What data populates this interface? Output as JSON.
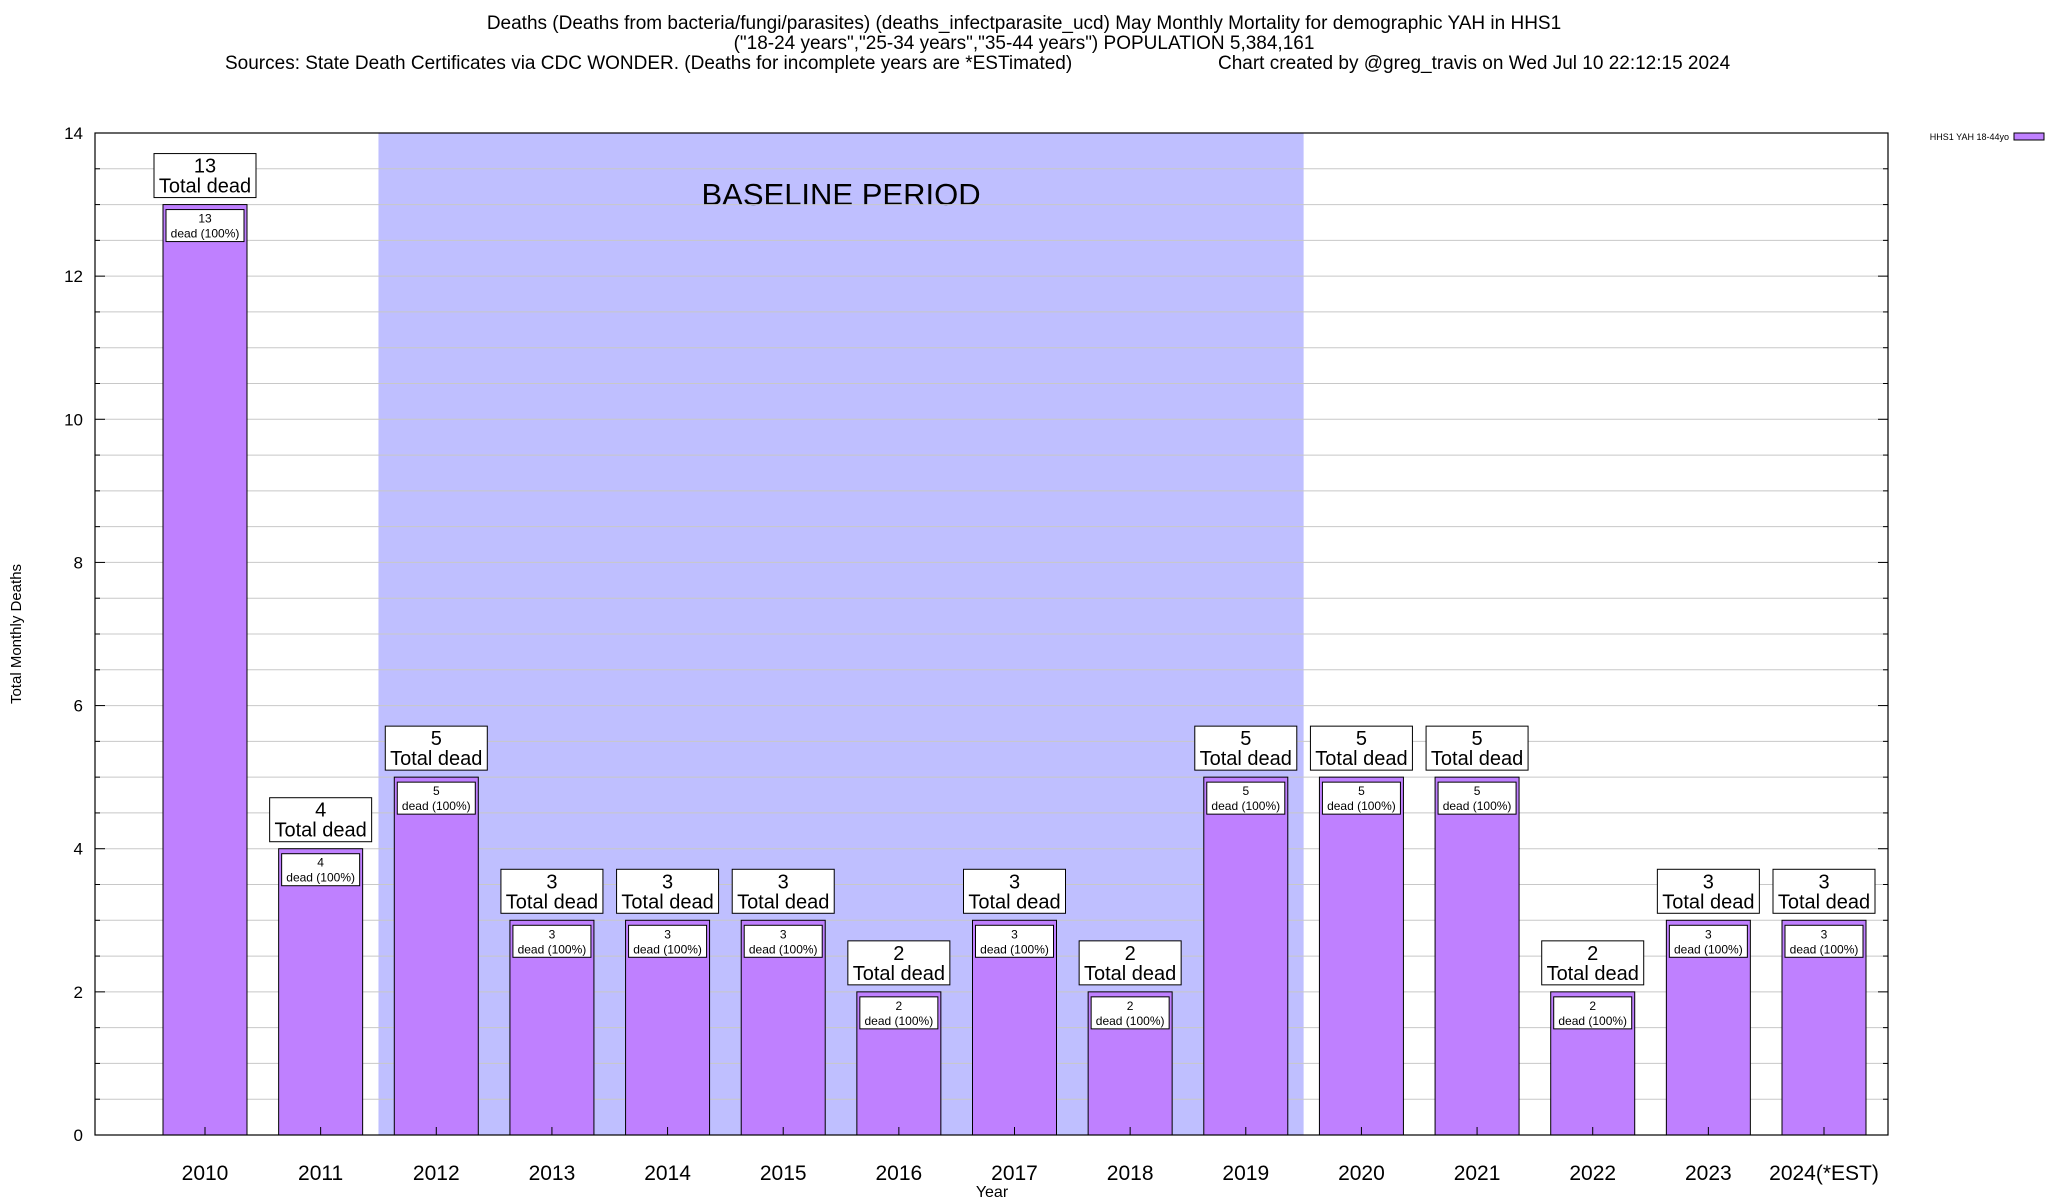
{
  "header": {
    "title_line1": "Deaths (Deaths from bacteria/fungi/parasites) (deaths_infectparasite_ucd) May Monthly Mortality for demographic YAH in HHS1",
    "title_line2": "(\"18-24 years\",\"25-34 years\",\"35-44 years\") POPULATION 5,384,161",
    "title_line3_left": "Sources: State Death Certificates via CDC WONDER. (Deaths for incomplete years are *ESTimated)",
    "title_line3_right": "Chart created by @greg_travis on Wed Jul 10 22:12:15 2024"
  },
  "colors": {
    "bar": "#bf80ff",
    "baseline_band": "#bfbfff",
    "grid": "#c8c8c8",
    "axis": "#000000"
  },
  "chart_data": {
    "type": "bar",
    "title": "Deaths (Deaths from bacteria/fungi/parasites) (deaths_infectparasite_ucd) May Monthly Mortality for demographic YAH in HHS1",
    "xlabel": "Year",
    "ylabel": "Total Monthly Deaths",
    "ylim": [
      0,
      14
    ],
    "yticks": [
      0,
      2,
      4,
      6,
      8,
      10,
      12,
      14
    ],
    "grid": true,
    "legend_position": "top-right",
    "categories": [
      "2010",
      "2011",
      "2012",
      "2013",
      "2014",
      "2015",
      "2016",
      "2017",
      "2018",
      "2019",
      "2020",
      "2021",
      "2022",
      "2023",
      "2024(*EST)"
    ],
    "series": [
      {
        "name": "HHS1 YAH 18-44yo",
        "values": [
          13,
          4,
          5,
          3,
          3,
          3,
          2,
          3,
          2,
          5,
          5,
          5,
          2,
          3,
          3
        ]
      }
    ],
    "total_label_suffix": "Total dead",
    "inner_label_suffix": "dead (100%)",
    "annotations": [
      {
        "text": "BASELINE PERIOD",
        "x_start": "2012",
        "x_end": "2019"
      }
    ]
  }
}
